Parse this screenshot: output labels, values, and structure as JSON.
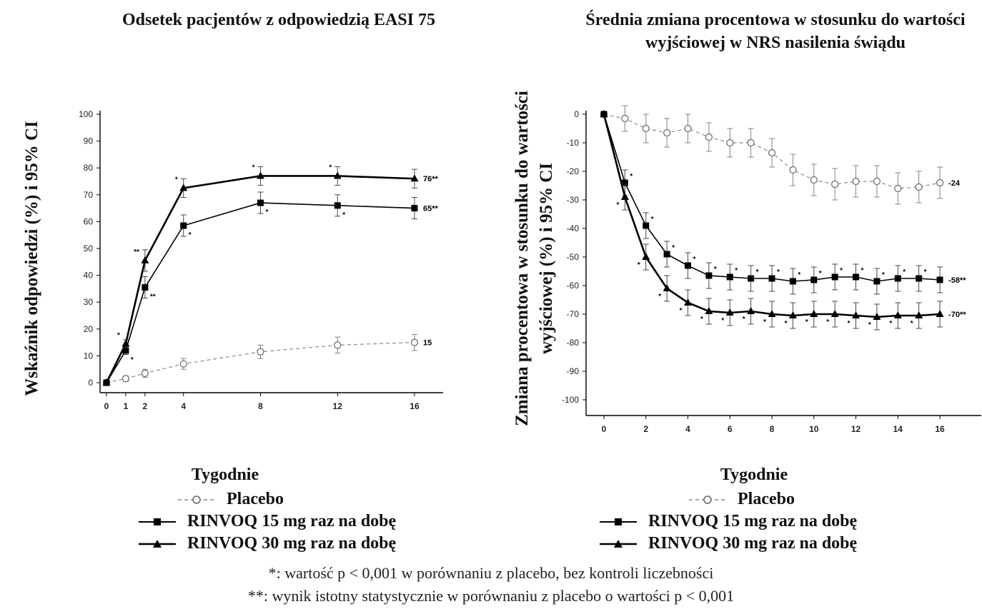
{
  "chart_data": [
    {
      "type": "line",
      "title": "Odsetek pacjentów z odpowiedzią EASI 75",
      "ylabel": "Wskaźnik odpowiedzi (%) i 95% CI",
      "xlabel": "Tygodnie",
      "x": [
        0,
        1,
        2,
        4,
        8,
        12,
        16
      ],
      "xticks": [
        "0",
        "1",
        "2",
        "4",
        "8",
        "12",
        "16"
      ],
      "ylim": [
        0,
        100
      ],
      "yticks": [
        "0",
        "10",
        "20",
        "30",
        "40",
        "50",
        "60",
        "70",
        "80",
        "90",
        "100"
      ],
      "series": [
        {
          "name": "Placebo",
          "marker": "circle-open",
          "style": "dashed",
          "values": [
            0,
            1.5,
            3.5,
            7,
            11.5,
            14,
            15
          ],
          "err": [
            0,
            1,
            1.5,
            2,
            2.5,
            3,
            3
          ],
          "annotations": [
            "",
            "",
            "",
            "",
            "",
            "",
            ""
          ],
          "end_label": "15"
        },
        {
          "name": "RINVOQ 15 mg raz na dobę",
          "marker": "square",
          "style": "solid-thin",
          "values": [
            0,
            12,
            35.5,
            58.5,
            67,
            66,
            65
          ],
          "err": [
            0,
            1.5,
            4,
            4,
            4,
            4,
            4
          ],
          "annotations": [
            "",
            "*",
            "**",
            "*",
            "*",
            "*",
            ""
          ],
          "end_label": "65**"
        },
        {
          "name": "RINVOQ 30 mg raz na dobę",
          "marker": "triangle",
          "style": "solid-thick",
          "values": [
            0,
            14.5,
            45.5,
            72.5,
            77,
            77,
            76
          ],
          "err": [
            0,
            1.5,
            4,
            3.5,
            3.5,
            3.5,
            3.5
          ],
          "annotations": [
            "",
            "*",
            "**",
            "*",
            "*",
            "*",
            ""
          ],
          "end_label": "76**"
        }
      ],
      "legend": [
        "Placebo",
        "RINVOQ 15 mg raz na dobę",
        "RINVOQ 30 mg raz na dobę"
      ]
    },
    {
      "type": "line",
      "title": "Średnia zmiana procentowa w stosunku do wartości wyjściowej w NRS nasilenia świądu",
      "ylabel": "Zmiana procentowa w stosunku do wartości wyjściowej (%) i 95% CI",
      "xlabel": "Tygodnie",
      "x": [
        0,
        1,
        2,
        3,
        4,
        5,
        6,
        7,
        8,
        9,
        10,
        11,
        12,
        13,
        14,
        15,
        16
      ],
      "xticks": [
        "0",
        "2",
        "4",
        "6",
        "8",
        "10",
        "12",
        "14",
        "16"
      ],
      "ylim": [
        -100,
        0
      ],
      "yticks": [
        "0",
        "-10",
        "-20",
        "-30",
        "-40",
        "-50",
        "-60",
        "-70",
        "-80",
        "-90",
        "-100"
      ],
      "series": [
        {
          "name": "Placebo",
          "marker": "circle-open",
          "style": "dashed",
          "values": [
            0,
            -1.5,
            -5,
            -6.5,
            -5,
            -8,
            -10,
            -10,
            -13.5,
            -19.5,
            -23,
            -24.5,
            -23.5,
            -23.5,
            -26,
            -25.5,
            -24
          ],
          "err": [
            0,
            4.5,
            5,
            5,
            5,
            5,
            5,
            5,
            5,
            5.5,
            5.5,
            5.5,
            5.5,
            5.5,
            5.5,
            5.5,
            5.5
          ],
          "annotations": [
            "",
            "",
            "",
            "",
            "",
            "",
            "",
            "",
            "",
            "",
            "",
            "",
            "",
            "",
            "",
            "",
            ""
          ],
          "end_label": "-24"
        },
        {
          "name": "RINVOQ 15 mg raz na dobę",
          "marker": "square",
          "style": "solid-thin",
          "values": [
            0,
            -24,
            -39,
            -49,
            -53,
            -56.5,
            -57,
            -57.5,
            -57.5,
            -58.5,
            -58,
            -57,
            -57,
            -58.5,
            -57.5,
            -57.5,
            -58
          ],
          "err": [
            0,
            4.5,
            4.5,
            4.5,
            4.5,
            4.5,
            4.5,
            4.5,
            4.5,
            4.5,
            4.5,
            4.5,
            4.5,
            4.5,
            4.5,
            4.5,
            4.5
          ],
          "annotations": [
            "",
            "*",
            "*",
            "*",
            "*",
            "*",
            "*",
            "*",
            "*",
            "*",
            "*",
            "*",
            "*",
            "*",
            "*",
            "*",
            ""
          ],
          "end_label": "-58**"
        },
        {
          "name": "RINVOQ 30 mg raz na dobę",
          "marker": "triangle",
          "style": "solid-thick",
          "values": [
            0,
            -29,
            -50,
            -61,
            -66,
            -69,
            -69.5,
            -69,
            -70,
            -70.5,
            -70,
            -70,
            -70.5,
            -71,
            -70.5,
            -70.5,
            -70
          ],
          "err": [
            0,
            4.5,
            4.5,
            4.5,
            4.5,
            4.5,
            4.5,
            4.5,
            4.5,
            4.5,
            4.5,
            4.5,
            4.5,
            4.5,
            4.5,
            4.5,
            4.5
          ],
          "annotations": [
            "",
            "*",
            "*",
            "*",
            "*",
            "*",
            "*",
            "*",
            "*",
            "*",
            "*",
            "*",
            "*",
            "*",
            "*",
            "*",
            ""
          ],
          "end_label": "-70**"
        }
      ],
      "legend": [
        "Placebo",
        "RINVOQ 15 mg raz na dobę",
        "RINVOQ 30 mg raz na dobę"
      ]
    }
  ],
  "footnotes": [
    "*: wartość p < 0,001 w porównaniu z placebo, bez kontroli liczebności",
    "**: wynik istotny statystycznie w porównaniu z placebo o wartości p < 0,001"
  ]
}
